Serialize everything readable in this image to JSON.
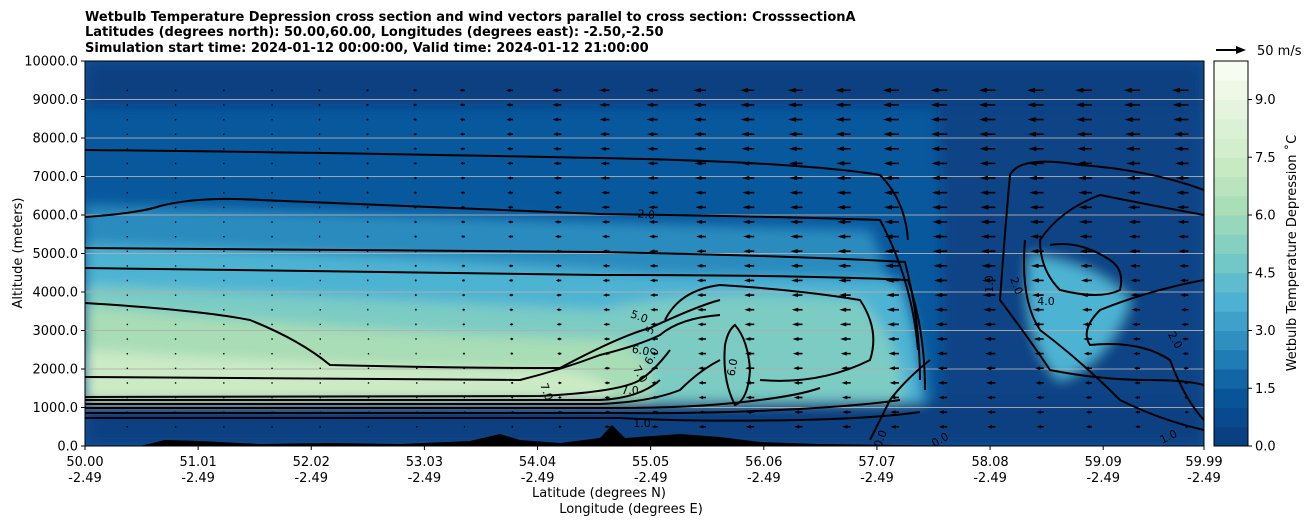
{
  "chart_data": {
    "type": "heatmap",
    "title_lines": [
      "Wetbulb Temperature Depression cross section and wind vectors parallel to cross section: CrosssectionA",
      "Latitudes (degrees north): 50.00,60.00, Longitudes (degrees east): -2.50,-2.50",
      "Simulation start time: 2024-01-12 00:00:00, Valid time: 2024-01-12 21:00:00"
    ],
    "xlabel_lines": [
      "Latitude (degrees N)",
      "Longitude (degrees E)"
    ],
    "ylabel": "Altitude (meters)",
    "x_ticks": [
      {
        "lat": "50.00",
        "lon": "-2.49",
        "value": 50.0
      },
      {
        "lat": "51.01",
        "lon": "-2.49",
        "value": 51.01
      },
      {
        "lat": "52.02",
        "lon": "-2.49",
        "value": 52.02
      },
      {
        "lat": "53.03",
        "lon": "-2.49",
        "value": 53.03
      },
      {
        "lat": "54.04",
        "lon": "-2.49",
        "value": 54.04
      },
      {
        "lat": "55.05",
        "lon": "-2.49",
        "value": 55.05
      },
      {
        "lat": "56.06",
        "lon": "-2.49",
        "value": 56.06
      },
      {
        "lat": "57.07",
        "lon": "-2.49",
        "value": 57.07
      },
      {
        "lat": "58.08",
        "lon": "-2.49",
        "value": 58.08
      },
      {
        "lat": "59.09",
        "lon": "-2.49",
        "value": 59.09
      },
      {
        "lat": "59.99",
        "lon": "-2.49",
        "value": 59.99
      }
    ],
    "y_ticks": [
      "0.0",
      "1000.0",
      "2000.0",
      "3000.0",
      "4000.0",
      "5000.0",
      "6000.0",
      "7000.0",
      "8000.0",
      "9000.0",
      "10000.0"
    ],
    "xlim": [
      50.0,
      59.99
    ],
    "ylim": [
      0,
      10000
    ],
    "grid": "horizontal",
    "colorbar": {
      "label": "Wetbulb Temperature Depression $^\\circ$C",
      "label_display": "Wetbulb Temperature Depression ˚C",
      "ticks": [
        "0.0",
        "1.5",
        "3.0",
        "4.5",
        "6.0",
        "7.5",
        "9.0"
      ],
      "range": [
        0,
        10
      ],
      "colors": [
        "#084081",
        "#08589e",
        "#2b8cbe",
        "#4eb3d3",
        "#7bccc4",
        "#a8ddb5",
        "#ccebc5",
        "#e0f3db",
        "#f7fcf0"
      ]
    },
    "quiver_key": {
      "label": "50 m/s",
      "speed": 50
    },
    "contour_labels": [
      "2.0",
      "5.0",
      "5",
      "6.0",
      "6.0",
      "7.0",
      "7.0",
      "7.0",
      "6.0",
      "1.0",
      "1.0",
      "2.0",
      "4.0",
      "2.0",
      "1.0",
      "0.0",
      "0.0"
    ],
    "wind_profile_ms": [
      {
        "z": 9500,
        "u": [
          0,
          -1,
          -1,
          -2,
          -3,
          -4,
          -6,
          -9,
          -12,
          -16,
          -18,
          -20,
          -22,
          -24,
          -25,
          -26,
          -27,
          -28,
          -28,
          -28,
          -28,
          -28,
          -28
        ]
      },
      {
        "z": 5000,
        "u": [
          0,
          0,
          -1,
          -1,
          -2,
          -3,
          -4,
          -6,
          -8,
          -10,
          -12,
          -14,
          -16,
          -18,
          -20,
          -22,
          -24,
          -24,
          -24,
          -22,
          -20,
          -18,
          -16
        ]
      },
      {
        "z": 1000,
        "u": [
          0,
          0,
          0,
          0,
          0,
          -1,
          -1,
          -2,
          -3,
          -5,
          -8,
          -10,
          -12,
          -14,
          -14,
          -14,
          -14,
          -14,
          -14,
          -12,
          -10,
          -8,
          -6
        ]
      }
    ]
  }
}
